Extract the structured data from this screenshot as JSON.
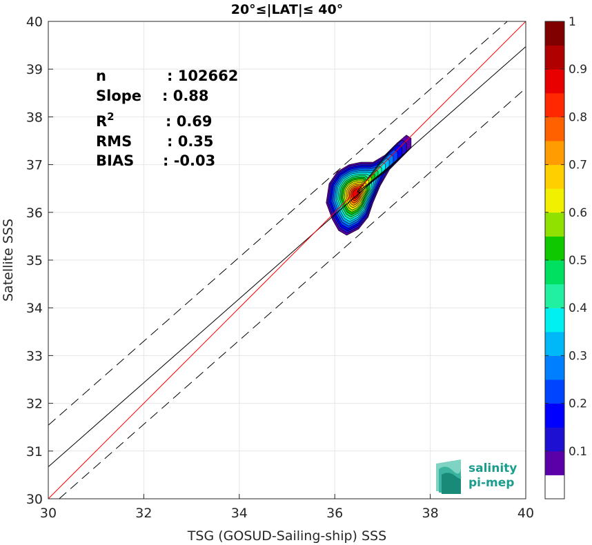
{
  "chart_data": {
    "type": "contour-scatter",
    "title": "20°≤|LAT|≤ 40°",
    "xlabel": "TSG (GOSUD-Sailing-ship) SSS",
    "ylabel": "Satellite SSS",
    "xlim": [
      30,
      40
    ],
    "ylim": [
      30,
      40
    ],
    "xticks": [
      "30",
      "32",
      "34",
      "36",
      "38",
      "40"
    ],
    "yticks": [
      "30",
      "31",
      "32",
      "33",
      "34",
      "35",
      "36",
      "37",
      "38",
      "39",
      "40"
    ],
    "grid": true,
    "stats": [
      {
        "label": "n",
        "value": ": 102662"
      },
      {
        "label": "Slope",
        "value": ": 0.88"
      },
      {
        "label": "R²",
        "value": ": 0.69"
      },
      {
        "label": "RMS",
        "value": ": 0.35"
      },
      {
        "label": "BIAS",
        "value": ": -0.03"
      }
    ],
    "lines": {
      "identity": {
        "slope": 1.0,
        "intercept": 0.0,
        "color": "#ff0000"
      },
      "fit": {
        "slope": 0.88,
        "intercept": 4.27,
        "color": "#000000"
      },
      "fit_upper_offset": 0.87,
      "fit_lower_offset": -0.87
    },
    "density_peak": {
      "x": 36.45,
      "y": 36.4
    },
    "colorbar": {
      "range": [
        0,
        1
      ],
      "ticks": [
        "0.1",
        "0.2",
        "0.3",
        "0.4",
        "0.5",
        "0.6",
        "0.7",
        "0.8",
        "0.9",
        "1"
      ],
      "colors": [
        "#ffffff",
        "#5a00a8",
        "#1e10d0",
        "#0000ff",
        "#0044ff",
        "#0080ff",
        "#00b8f8",
        "#00f0f0",
        "#20f0a0",
        "#00e060",
        "#10c800",
        "#90e000",
        "#f0f000",
        "#ffd000",
        "#ff9c00",
        "#ff6000",
        "#ff2800",
        "#e80000",
        "#b00000",
        "#800000"
      ]
    }
  },
  "logo": {
    "line1": "salinity",
    "line2": "pi-mep"
  }
}
